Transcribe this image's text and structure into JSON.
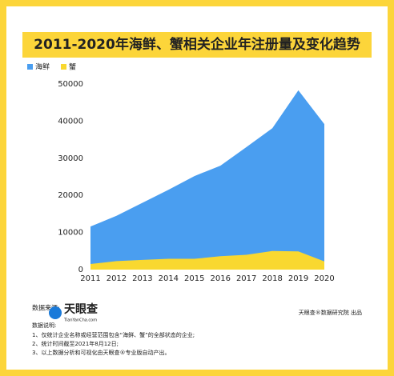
{
  "chart_data": {
    "type": "area",
    "title": "2011-2020年海鲜、蟹相关企业年注册量及变化趋势",
    "categories": [
      "2011",
      "2012",
      "2013",
      "2014",
      "2015",
      "2016",
      "2017",
      "2018",
      "2019",
      "2020"
    ],
    "series": [
      {
        "name": "海鲜",
        "color": "#4a9ef0",
        "values": [
          11600,
          14500,
          18000,
          21500,
          25200,
          28000,
          33000,
          38100,
          48300,
          39200
        ]
      },
      {
        "name": "蟹",
        "color": "#f9d830",
        "values": [
          1500,
          2300,
          2600,
          2900,
          2900,
          3600,
          4000,
          5000,
          4900,
          2200
        ]
      }
    ],
    "ylim": [
      0,
      50000
    ],
    "yticks": [
      0,
      10000,
      20000,
      30000,
      40000,
      50000
    ],
    "grid": false,
    "legend": "top-left"
  },
  "footer": {
    "source_label": "数据来源:",
    "logo": "天眼查",
    "logo_sub": "TianYanCha.com",
    "notes_label": "数据说明:",
    "notes": [
      "1、仅统计企业名称或经营范围包含“海鲜、蟹”的全部状态的企业;",
      "2、统计时间截至2021年8月12日;",
      "3、以上数据分析和可视化由天眼查®专业版自动产出。"
    ],
    "credit": "天眼查®数据研究院 出品"
  }
}
